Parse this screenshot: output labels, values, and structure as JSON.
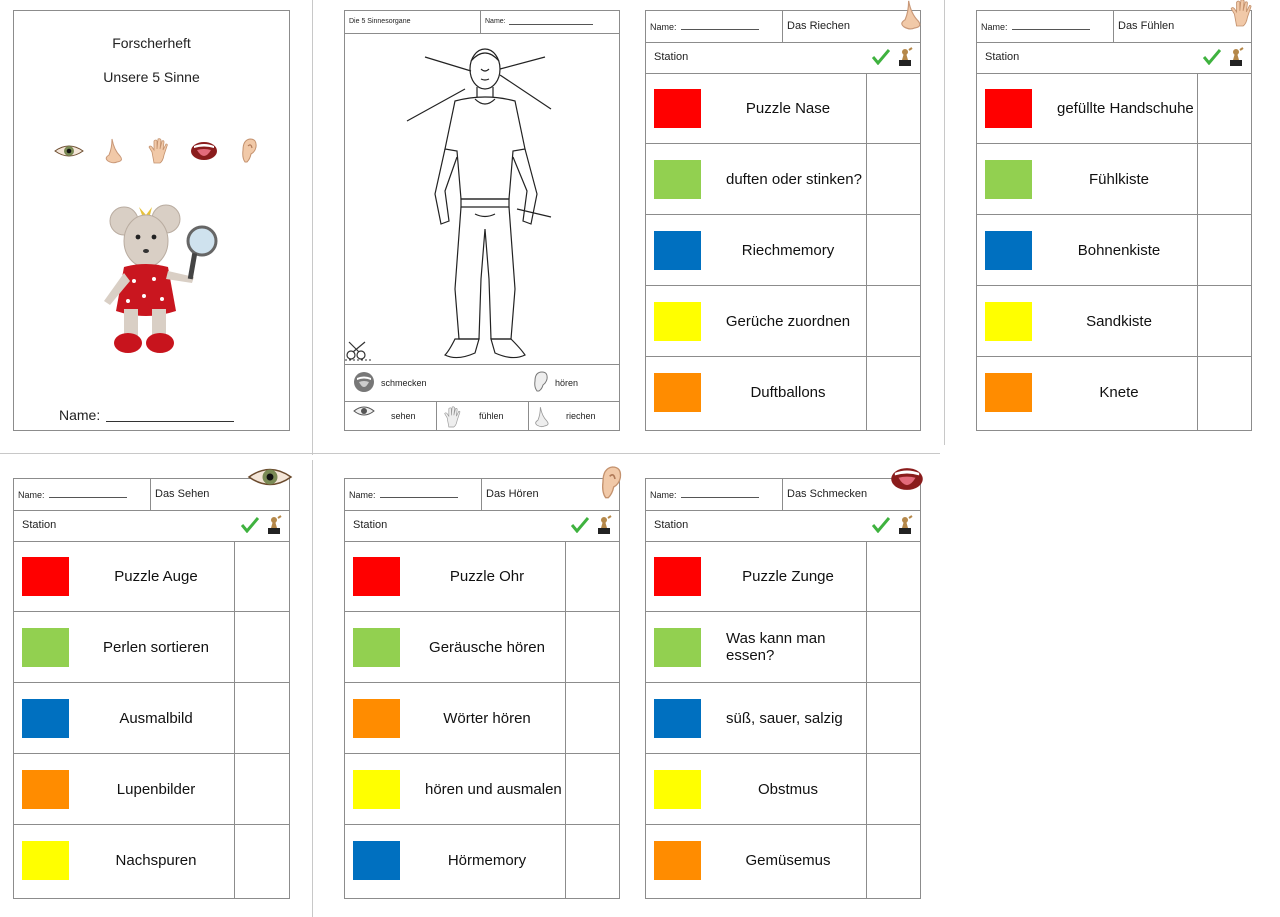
{
  "cover": {
    "title": "Forscherheft",
    "subtitle": "Unsere 5 Sinne",
    "name_label": "Name:"
  },
  "diagram": {
    "header_left": "Die 5 Sinnesorgane",
    "header_name": "Name:",
    "labels": {
      "schmecken": "schmecken",
      "hoeren": "hören",
      "sehen": "sehen",
      "fuehlen": "fühlen",
      "riechen": "riechen"
    }
  },
  "station_label": "Station",
  "name_label": "Name:",
  "sheets": {
    "riechen": {
      "sense": "Das Riechen",
      "stations": [
        {
          "color": "#ff0000",
          "text": "Puzzle Nase"
        },
        {
          "color": "#92d050",
          "text": "duften oder stinken?"
        },
        {
          "color": "#0070c0",
          "text": "Riechmemory"
        },
        {
          "color": "#ffff00",
          "text": "Gerüche zuordnen"
        },
        {
          "color": "#ff8c00",
          "text": "Duftballons"
        }
      ]
    },
    "fuehlen": {
      "sense": "Das Fühlen",
      "stations": [
        {
          "color": "#ff0000",
          "text": "gefüllte Handschuhe"
        },
        {
          "color": "#92d050",
          "text": "Fühlkiste"
        },
        {
          "color": "#0070c0",
          "text": "Bohnenkiste"
        },
        {
          "color": "#ffff00",
          "text": "Sandkiste"
        },
        {
          "color": "#ff8c00",
          "text": "Knete"
        }
      ]
    },
    "sehen": {
      "sense": "Das Sehen",
      "stations": [
        {
          "color": "#ff0000",
          "text": "Puzzle Auge"
        },
        {
          "color": "#92d050",
          "text": "Perlen sortieren"
        },
        {
          "color": "#0070c0",
          "text": "Ausmalbild"
        },
        {
          "color": "#ff8c00",
          "text": "Lupenbilder"
        },
        {
          "color": "#ffff00",
          "text": "Nachspuren"
        }
      ]
    },
    "hoeren": {
      "sense": "Das Hören",
      "stations": [
        {
          "color": "#ff0000",
          "text": "Puzzle Ohr"
        },
        {
          "color": "#92d050",
          "text": "Geräusche hören"
        },
        {
          "color": "#ff8c00",
          "text": "Wörter hören"
        },
        {
          "color": "#ffff00",
          "text": "hören und ausmalen"
        },
        {
          "color": "#0070c0",
          "text": "Hörmemory"
        }
      ]
    },
    "schmecken": {
      "sense": "Das Schmecken",
      "stations": [
        {
          "color": "#ff0000",
          "text": "Puzzle Zunge"
        },
        {
          "color": "#92d050",
          "text": "Was kann man essen?"
        },
        {
          "color": "#0070c0",
          "text": "süß, sauer, salzig"
        },
        {
          "color": "#ffff00",
          "text": "Obstmus"
        },
        {
          "color": "#ff8c00",
          "text": "Gemüsemus"
        }
      ]
    }
  }
}
